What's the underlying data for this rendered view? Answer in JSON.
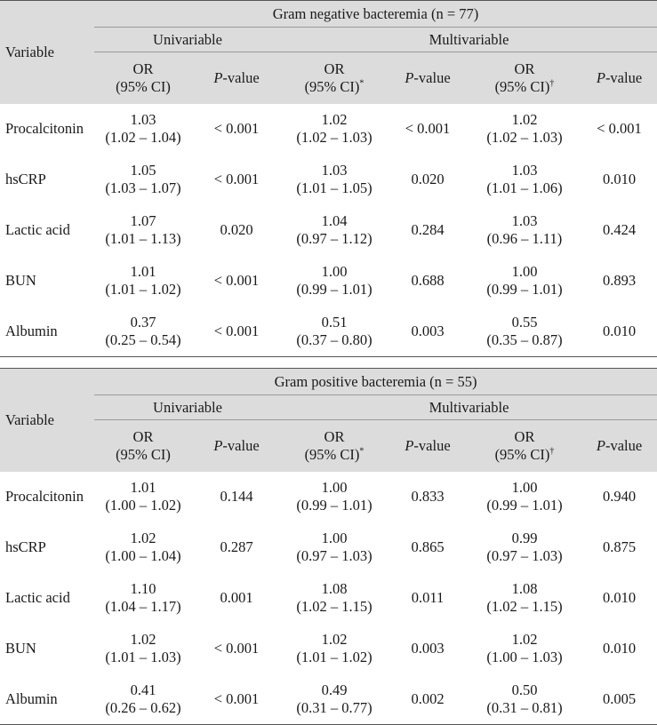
{
  "columns": {
    "variable": "Variable",
    "univariable": "Univariable",
    "multivariable": "Multivariable",
    "or_line1": "OR",
    "or_line2": "(95% CI)",
    "or_mark_star": "*",
    "or_mark_dagger": "†",
    "p_italic": "P",
    "p_rest": "-value"
  },
  "tables": [
    {
      "title": "Gram negative bacteremia (n = 77)",
      "rows": [
        {
          "name": "Procalcitonin",
          "uni_or": "1.03",
          "uni_ci": "(1.02 – 1.04)",
          "uni_p": "< 0.001",
          "m1_or": "1.02",
          "m1_ci": "(1.02 – 1.03)",
          "m1_p": "< 0.001",
          "m2_or": "1.02",
          "m2_ci": "(1.02 – 1.03)",
          "m2_p": "< 0.001"
        },
        {
          "name": "hsCRP",
          "uni_or": "1.05",
          "uni_ci": "(1.03 – 1.07)",
          "uni_p": "< 0.001",
          "m1_or": "1.03",
          "m1_ci": "(1.01 – 1.05)",
          "m1_p": "0.020",
          "m2_or": "1.03",
          "m2_ci": "(1.01 – 1.06)",
          "m2_p": "0.010"
        },
        {
          "name": "Lactic acid",
          "uni_or": "1.07",
          "uni_ci": "(1.01 – 1.13)",
          "uni_p": "0.020",
          "m1_or": "1.04",
          "m1_ci": "(0.97 – 1.12)",
          "m1_p": "0.284",
          "m2_or": "1.03",
          "m2_ci": "(0.96 – 1.11)",
          "m2_p": "0.424"
        },
        {
          "name": "BUN",
          "uni_or": "1.01",
          "uni_ci": "(1.01 – 1.02)",
          "uni_p": "< 0.001",
          "m1_or": "1.00",
          "m1_ci": "(0.99 – 1.01)",
          "m1_p": "0.688",
          "m2_or": "1.00",
          "m2_ci": "(0.99 – 1.01)",
          "m2_p": "0.893"
        },
        {
          "name": "Albumin",
          "uni_or": "0.37",
          "uni_ci": "(0.25 – 0.54)",
          "uni_p": "< 0.001",
          "m1_or": "0.51",
          "m1_ci": "(0.37 – 0.80)",
          "m1_p": "0.003",
          "m2_or": "0.55",
          "m2_ci": "(0.35 – 0.87)",
          "m2_p": "0.010"
        }
      ]
    },
    {
      "title": "Gram positive bacteremia (n = 55)",
      "rows": [
        {
          "name": "Procalcitonin",
          "uni_or": "1.01",
          "uni_ci": "(1.00 – 1.02)",
          "uni_p": "0.144",
          "m1_or": "1.00",
          "m1_ci": "(0.99 – 1.01)",
          "m1_p": "0.833",
          "m2_or": "1.00",
          "m2_ci": "(0.99 – 1.01)",
          "m2_p": "0.940"
        },
        {
          "name": "hsCRP",
          "uni_or": "1.02",
          "uni_ci": "(1.00 – 1.04)",
          "uni_p": "0.287",
          "m1_or": "1.00",
          "m1_ci": "(0.97 – 1.03)",
          "m1_p": "0.865",
          "m2_or": "0.99",
          "m2_ci": "(0.97 – 1.03)",
          "m2_p": "0.875"
        },
        {
          "name": "Lactic acid",
          "uni_or": "1.10",
          "uni_ci": "(1.04 – 1.17)",
          "uni_p": "0.001",
          "m1_or": "1.08",
          "m1_ci": "(1.02 – 1.15)",
          "m1_p": "0.011",
          "m2_or": "1.08",
          "m2_ci": "(1.02 – 1.15)",
          "m2_p": "0.010"
        },
        {
          "name": "BUN",
          "uni_or": "1.02",
          "uni_ci": "(1.01 – 1.03)",
          "uni_p": "< 0.001",
          "m1_or": "1.02",
          "m1_ci": "(1.01 – 1.02)",
          "m1_p": "0.003",
          "m2_or": "1.02",
          "m2_ci": "(1.00 – 1.03)",
          "m2_p": "0.010"
        },
        {
          "name": "Albumin",
          "uni_or": "0.41",
          "uni_ci": "(0.26 – 0.62)",
          "uni_p": "< 0.001",
          "m1_or": "0.49",
          "m1_ci": "(0.31 – 0.77)",
          "m1_p": "0.002",
          "m2_or": "0.50",
          "m2_ci": "(0.31 – 0.81)",
          "m2_p": "0.005"
        }
      ]
    }
  ]
}
